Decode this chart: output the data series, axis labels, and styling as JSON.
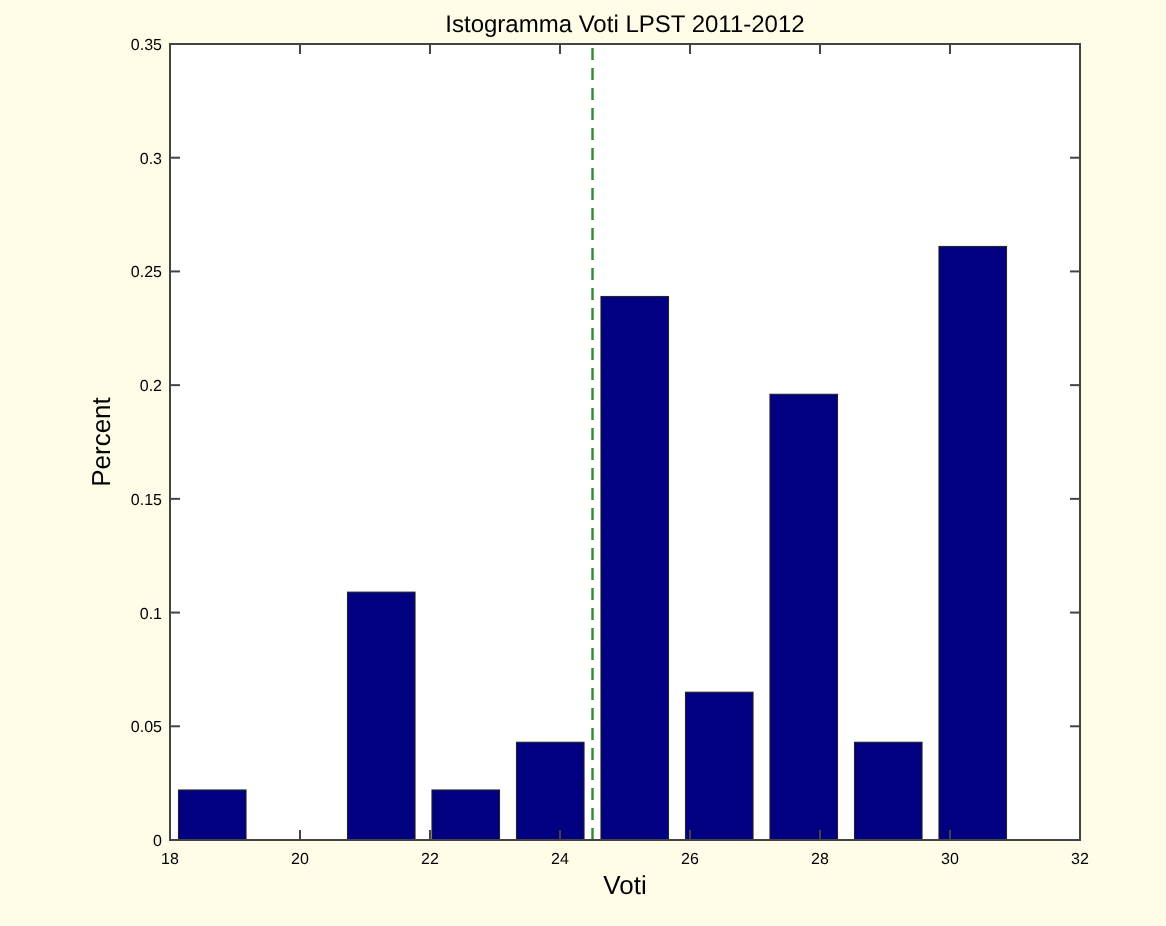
{
  "chart_data": {
    "type": "histogram",
    "title": "Istogramma Voti LPST 2011-2012",
    "xlabel": "Voti",
    "ylabel": "Percent",
    "bins": [
      18,
      19.3,
      20.6,
      21.9,
      23.2,
      24.5,
      25.8,
      27.1,
      28.4,
      29.7,
      31
    ],
    "values": [
      0.022,
      0,
      0.109,
      0.022,
      0.043,
      0.239,
      0.065,
      0.196,
      0.043,
      0.261
    ],
    "color": "#000080",
    "xlim": [
      18,
      32
    ],
    "xticks": [
      18,
      20,
      22,
      24,
      26,
      28,
      30,
      32
    ],
    "ylim": [
      0,
      0.35
    ],
    "yticks": [
      0,
      0.05,
      0.1,
      0.15,
      0.2,
      0.25,
      0.3,
      0.35
    ],
    "ref_lines": [
      {
        "axis": "x",
        "value": 24.5,
        "color": "#2e8b2e",
        "line_style": "dashed"
      }
    ],
    "grid": false
  }
}
